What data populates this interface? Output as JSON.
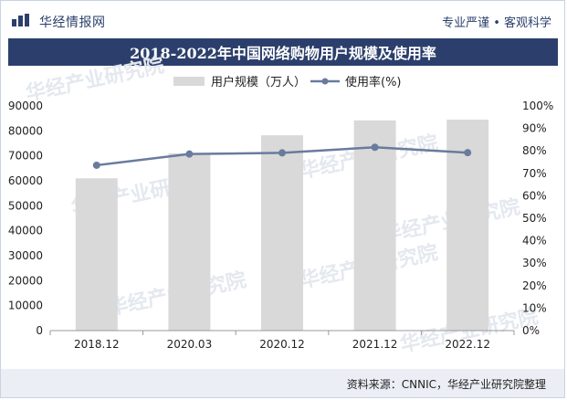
{
  "header": {
    "brand": "华经情报网",
    "tagline": "专业严谨 • 客观科学"
  },
  "title": "2018-2022年中国网络购物用户规模及使用率",
  "source": "资料来源：CNNIC，华经产业研究院整理",
  "watermark": "华经产业研究院",
  "colors": {
    "bar": "#d9d9d9",
    "line": "#6a7b9d",
    "title_bg": "#2c3f6c"
  },
  "chart_data": {
    "type": "bar",
    "categories": [
      "2018.12",
      "2020.03",
      "2020.12",
      "2021.12",
      "2022.12"
    ],
    "series": [
      {
        "name": "用户规模（万人）",
        "type": "bar",
        "axis": "left",
        "values": [
          61011,
          71027,
          78241,
          84210,
          84529
        ]
      },
      {
        "name": "使用率(%)",
        "type": "line",
        "axis": "right",
        "values": [
          73.6,
          78.6,
          79.1,
          81.6,
          79.2
        ]
      }
    ],
    "left_axis": {
      "ylim": [
        0,
        90000
      ],
      "ticks": [
        "0",
        "10000",
        "20000",
        "30000",
        "40000",
        "50000",
        "60000",
        "70000",
        "80000",
        "90000"
      ]
    },
    "right_axis": {
      "ylim": [
        0,
        100
      ],
      "ticks": [
        "0%",
        "10%",
        "20%",
        "30%",
        "40%",
        "50%",
        "60%",
        "70%",
        "80%",
        "90%",
        "100%"
      ]
    },
    "legend": "top-center",
    "grid": false
  }
}
